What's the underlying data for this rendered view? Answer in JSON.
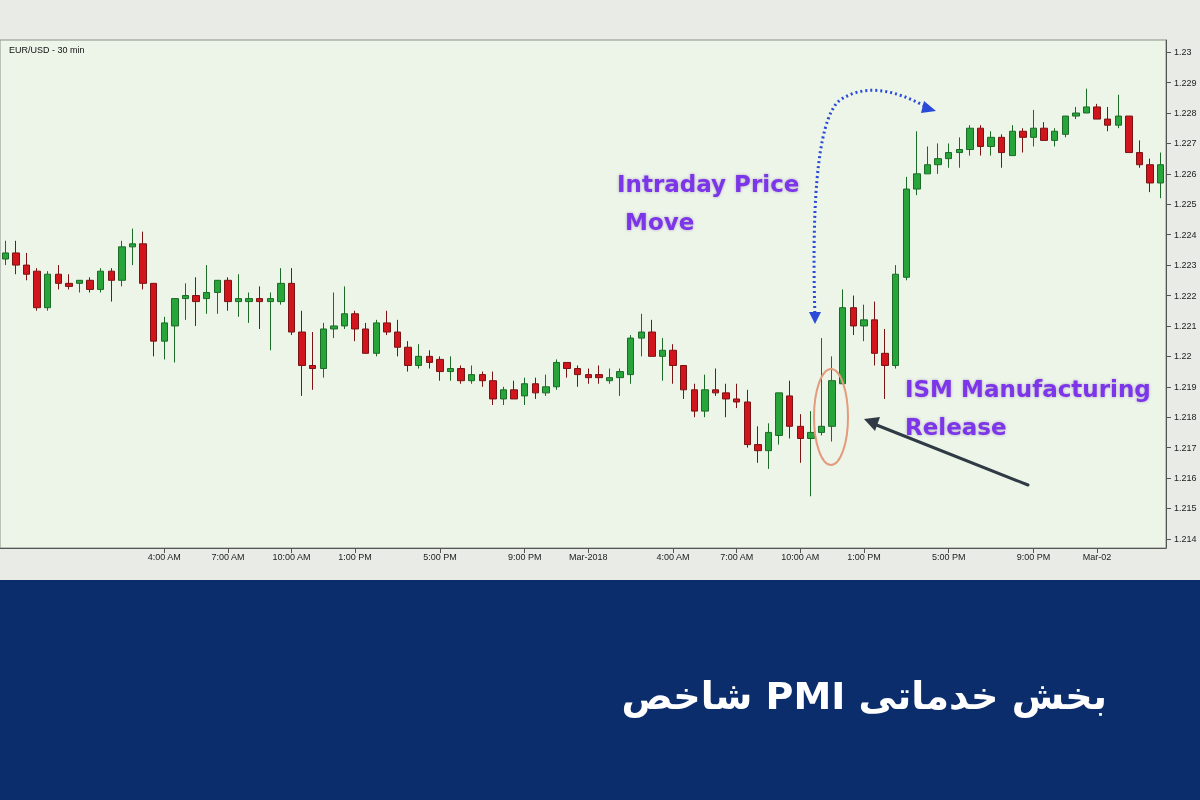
{
  "chart_data": {
    "type": "candlestick",
    "title": "EUR/USD - 30 min",
    "subtitle": "شاخص PMI بخش خدماتی",
    "annotations": [
      "Intraday Price Move",
      "ISM Manufacturing Release"
    ],
    "categories": [
      null,
      null,
      null,
      null,
      null,
      null,
      null,
      null,
      null,
      null,
      null,
      null,
      null,
      null,
      null,
      "4:00 AM",
      null,
      null,
      null,
      null,
      null,
      "7:00 AM",
      null,
      null,
      null,
      null,
      null,
      "10:00 AM",
      null,
      null,
      null,
      null,
      null,
      "1:00 PM",
      null,
      null,
      null,
      null,
      null,
      null,
      null,
      "5:00 PM",
      null,
      null,
      null,
      null,
      null,
      null,
      null,
      "9:00 PM",
      null,
      null,
      null,
      null,
      null,
      "Mar-2018",
      null,
      null,
      null,
      null,
      null,
      null,
      null,
      "4:00 AM",
      null,
      null,
      null,
      null,
      null,
      "7:00 AM",
      null,
      null,
      null,
      null,
      null,
      "10:00 AM",
      null,
      null,
      null,
      null,
      null,
      "1:00 PM",
      null,
      null,
      null,
      null,
      null,
      null,
      null,
      "5:00 PM",
      null,
      null,
      null,
      null,
      null,
      null,
      null,
      "9:00 PM",
      null,
      null,
      null,
      null,
      null,
      "Mar-02",
      null,
      null,
      null,
      null,
      null,
      null
    ],
    "ohlc": [
      [
        1.2232,
        1.2238,
        1.223,
        1.2234
      ],
      [
        1.2234,
        1.2238,
        1.2227,
        1.223
      ],
      [
        1.223,
        1.2234,
        1.2225,
        1.2227
      ],
      [
        1.2228,
        1.2229,
        1.2215,
        1.2216
      ],
      [
        1.2216,
        1.2228,
        1.2215,
        1.2227
      ],
      [
        1.2227,
        1.223,
        1.2222,
        1.2224
      ],
      [
        1.2224,
        1.2227,
        1.2222,
        1.2223
      ],
      [
        1.2224,
        1.2225,
        1.2221,
        1.2225
      ],
      [
        1.2225,
        1.2226,
        1.2221,
        1.2222
      ],
      [
        1.2222,
        1.2229,
        1.2221,
        1.2228
      ],
      [
        1.2228,
        1.2229,
        1.2218,
        1.2225
      ],
      [
        1.2225,
        1.2238,
        1.2223,
        1.2236
      ],
      [
        1.2236,
        1.2242,
        1.223,
        1.2237
      ],
      [
        1.2237,
        1.2241,
        1.2222,
        1.2224
      ],
      [
        1.2224,
        1.2224,
        1.22,
        1.2205
      ],
      [
        1.2205,
        1.2213,
        1.2199,
        1.2211
      ],
      [
        1.221,
        1.2219,
        1.2198,
        1.2219
      ],
      [
        1.2219,
        1.2224,
        1.2212,
        1.222
      ],
      [
        1.222,
        1.2226,
        1.221,
        1.2218
      ],
      [
        1.2219,
        1.223,
        1.2214,
        1.2221
      ],
      [
        1.2221,
        1.2225,
        1.2214,
        1.2225
      ],
      [
        1.2225,
        1.2226,
        1.2215,
        1.2218
      ],
      [
        1.2218,
        1.2227,
        1.2213,
        1.2219
      ],
      [
        1.2218,
        1.2221,
        1.2211,
        1.2219
      ],
      [
        1.2219,
        1.2223,
        1.2209,
        1.2218
      ],
      [
        1.2218,
        1.2221,
        1.2202,
        1.2219
      ],
      [
        1.2218,
        1.2229,
        1.2217,
        1.2224
      ],
      [
        1.2224,
        1.2229,
        1.2207,
        1.2208
      ],
      [
        1.2208,
        1.2215,
        1.2187,
        1.2197
      ],
      [
        1.2197,
        1.2208,
        1.2189,
        1.2196
      ],
      [
        1.2196,
        1.2211,
        1.2193,
        1.2209
      ],
      [
        1.2209,
        1.2221,
        1.2206,
        1.221
      ],
      [
        1.221,
        1.2223,
        1.2209,
        1.2214
      ],
      [
        1.2214,
        1.2215,
        1.2205,
        1.2209
      ],
      [
        1.2209,
        1.2211,
        1.2201,
        1.2201
      ],
      [
        1.2201,
        1.2212,
        1.22,
        1.2211
      ],
      [
        1.2211,
        1.2215,
        1.2207,
        1.2208
      ],
      [
        1.2208,
        1.2212,
        1.22,
        1.2203
      ],
      [
        1.2203,
        1.2205,
        1.2195,
        1.2197
      ],
      [
        1.2197,
        1.2204,
        1.2196,
        1.22
      ],
      [
        1.22,
        1.2202,
        1.2196,
        1.2198
      ],
      [
        1.2199,
        1.22,
        1.2192,
        1.2195
      ],
      [
        1.2195,
        1.22,
        1.2192,
        1.2196
      ],
      [
        1.2196,
        1.2197,
        1.2191,
        1.2192
      ],
      [
        1.2192,
        1.2197,
        1.2191,
        1.2194
      ],
      [
        1.2194,
        1.2195,
        1.219,
        1.2192
      ],
      [
        1.2192,
        1.2195,
        1.2184,
        1.2186
      ],
      [
        1.2186,
        1.219,
        1.2184,
        1.2189
      ],
      [
        1.2189,
        1.2192,
        1.2186,
        1.2186
      ],
      [
        1.2187,
        1.2193,
        1.2184,
        1.2191
      ],
      [
        1.2191,
        1.2193,
        1.2186,
        1.2188
      ],
      [
        1.2188,
        1.2194,
        1.2187,
        1.219
      ],
      [
        1.219,
        1.2199,
        1.2189,
        1.2198
      ],
      [
        1.2198,
        1.2198,
        1.2193,
        1.2196
      ],
      [
        1.2196,
        1.2197,
        1.219,
        1.2194
      ],
      [
        1.2194,
        1.2196,
        1.2191,
        1.2193
      ],
      [
        1.2194,
        1.2197,
        1.2191,
        1.2193
      ],
      [
        1.2192,
        1.2196,
        1.2191,
        1.2193
      ],
      [
        1.2193,
        1.2196,
        1.2187,
        1.2195
      ],
      [
        1.2194,
        1.2207,
        1.2191,
        1.2206
      ],
      [
        1.2206,
        1.2214,
        1.22,
        1.2208
      ],
      [
        1.2208,
        1.2212,
        1.22,
        1.22
      ],
      [
        1.22,
        1.2206,
        1.2192,
        1.2202
      ],
      [
        1.2202,
        1.2204,
        1.2191,
        1.2197
      ],
      [
        1.2197,
        1.2197,
        1.2186,
        1.2189
      ],
      [
        1.2189,
        1.2191,
        1.218,
        1.2182
      ],
      [
        1.2182,
        1.2194,
        1.218,
        1.2189
      ],
      [
        1.2189,
        1.2196,
        1.2187,
        1.2188
      ],
      [
        1.2188,
        1.2191,
        1.218,
        1.2186
      ],
      [
        1.2186,
        1.2191,
        1.2183,
        1.2185
      ],
      [
        1.2185,
        1.2189,
        1.217,
        1.2171
      ],
      [
        1.2171,
        1.2177,
        1.2165,
        1.2169
      ],
      [
        1.2169,
        1.2178,
        1.2163,
        1.2175
      ],
      [
        1.2174,
        1.2188,
        1.2171,
        1.2188
      ],
      [
        1.2187,
        1.2192,
        1.2173,
        1.2177
      ],
      [
        1.2177,
        1.2181,
        1.2165,
        1.2173
      ],
      [
        1.2173,
        1.2182,
        1.2154,
        1.2175
      ],
      [
        1.2175,
        1.2206,
        1.2174,
        1.2177
      ],
      [
        1.2177,
        1.22,
        1.2172,
        1.2192
      ],
      [
        1.2191,
        1.2222,
        1.2191,
        1.2216
      ],
      [
        1.2216,
        1.222,
        1.2207,
        1.221
      ],
      [
        1.221,
        1.2217,
        1.2205,
        1.2212
      ],
      [
        1.2212,
        1.2218,
        1.2197,
        1.2201
      ],
      [
        1.2201,
        1.2209,
        1.2186,
        1.2197
      ],
      [
        1.2197,
        1.223,
        1.2196,
        1.2227
      ],
      [
        1.2226,
        1.2259,
        1.2225,
        1.2255
      ],
      [
        1.2255,
        1.2274,
        1.2253,
        1.226
      ],
      [
        1.226,
        1.2269,
        1.226,
        1.2263
      ],
      [
        1.2263,
        1.227,
        1.226,
        1.2265
      ],
      [
        1.2265,
        1.227,
        1.2262,
        1.2267
      ],
      [
        1.2267,
        1.2272,
        1.2262,
        1.2268
      ],
      [
        1.2268,
        1.2276,
        1.2266,
        1.2275
      ],
      [
        1.2275,
        1.2276,
        1.2266,
        1.2269
      ],
      [
        1.2269,
        1.2274,
        1.2266,
        1.2272
      ],
      [
        1.2272,
        1.2273,
        1.2262,
        1.2267
      ],
      [
        1.2266,
        1.2276,
        1.2266,
        1.2274
      ],
      [
        1.2274,
        1.2275,
        1.2267,
        1.2272
      ],
      [
        1.2272,
        1.2281,
        1.2269,
        1.2275
      ],
      [
        1.2275,
        1.2277,
        1.2271,
        1.2271
      ],
      [
        1.2271,
        1.2275,
        1.2269,
        1.2274
      ],
      [
        1.2273,
        1.2279,
        1.2272,
        1.2279
      ],
      [
        1.2279,
        1.2282,
        1.2278,
        1.228
      ],
      [
        1.228,
        1.2288,
        1.228,
        1.2282
      ],
      [
        1.2282,
        1.2283,
        1.2278,
        1.2278
      ],
      [
        1.2278,
        1.2282,
        1.2274,
        1.2276
      ],
      [
        1.2276,
        1.2286,
        1.2275,
        1.2279
      ],
      [
        1.2279,
        1.2279,
        1.2267,
        1.2267
      ],
      [
        1.2267,
        1.2271,
        1.2262,
        1.2263
      ],
      [
        1.2263,
        1.2265,
        1.2254,
        1.2257
      ],
      [
        1.2257,
        1.2267,
        1.2252,
        1.2263
      ]
    ],
    "ylim": [
      1.2137,
      1.2304
    ],
    "yticks": [
      1.214,
      1.215,
      1.216,
      1.217,
      1.218,
      1.219,
      1.22,
      1.221,
      1.222,
      1.223,
      1.224,
      1.225,
      1.226,
      1.227,
      1.228,
      1.229,
      1.23
    ]
  }
}
